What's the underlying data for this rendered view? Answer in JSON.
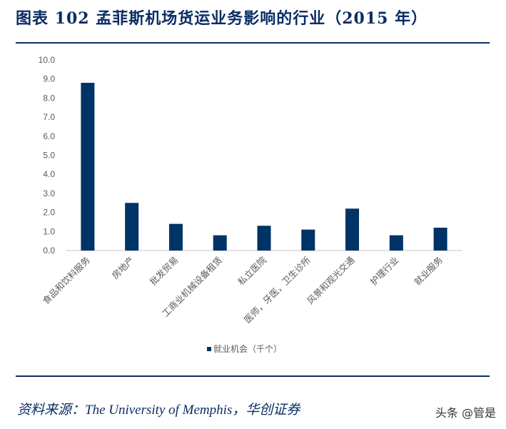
{
  "header": {
    "title": "图表 102   孟菲斯机场货运业务影响的行业（2015 年）"
  },
  "footer": {
    "source": "资料来源：The University of Memphis，华创证券",
    "watermark": "头条 @管是"
  },
  "chart_data": {
    "type": "bar",
    "title": "",
    "xlabel": "",
    "ylabel": "",
    "ylim": [
      0,
      10
    ],
    "yticks": [
      "0.0",
      "1.0",
      "2.0",
      "3.0",
      "4.0",
      "5.0",
      "6.0",
      "7.0",
      "8.0",
      "9.0",
      "10.0"
    ],
    "categories": [
      "食品和饮料服务",
      "房地产",
      "批发贸易",
      "工商业机械设备租赁",
      "私立医院",
      "医师，牙医，卫生诊所",
      "风景和观光交通",
      "护理行业",
      "就业服务"
    ],
    "series": [
      {
        "name": "就业机会（千个）",
        "values": [
          8.8,
          2.5,
          1.4,
          0.8,
          1.3,
          1.1,
          2.2,
          0.8,
          1.2
        ]
      }
    ],
    "legend": "bottom",
    "grid": false,
    "colors": {
      "bar": "#003366",
      "axis": "#d9d9d9"
    }
  }
}
